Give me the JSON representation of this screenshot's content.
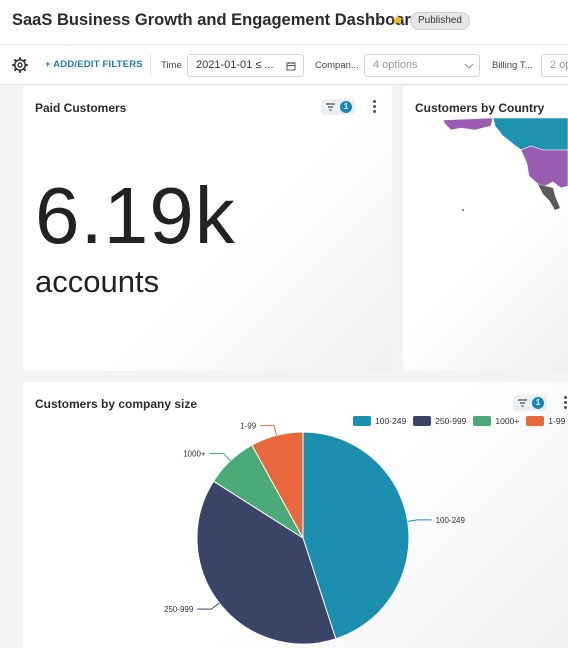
{
  "header": {
    "title": "SaaS Business Growth and Engagement Dashboard",
    "status": "Published"
  },
  "filterbar": {
    "add_filters_label": "+ ADD/EDIT FILTERS",
    "filters": [
      {
        "label": "Time",
        "value": "2021-01-01 ≤ ...",
        "kind": "date"
      },
      {
        "label": "Compan...",
        "value": "4 options",
        "kind": "select"
      },
      {
        "label": "Billing T...",
        "value": "2 op",
        "kind": "select"
      }
    ]
  },
  "cards": {
    "paid_customers": {
      "title": "Paid Customers",
      "filter_count": "1",
      "value": "6.19k",
      "unit": "accounts"
    },
    "customers_by_country": {
      "title": "Customers by Country"
    },
    "customers_by_company_size": {
      "title": "Customers by company size",
      "filter_count": "1"
    }
  },
  "colors": {
    "accent": "#1a85b8",
    "star": "#f2b80a",
    "map_purple": "#9b5cb4",
    "map_teal": "#1e93b0"
  },
  "chart_data": {
    "type": "pie",
    "title": "Customers by company size",
    "legend_position": "top-right",
    "slices": [
      {
        "label": "100-249",
        "value": 45,
        "color": "#1a8fb0"
      },
      {
        "label": "250-999",
        "value": 39,
        "color": "#3a4466"
      },
      {
        "label": "1000+",
        "value": 8,
        "color": "#4aab78"
      },
      {
        "label": "1-99",
        "value": 8,
        "color": "#e8673c"
      }
    ]
  }
}
